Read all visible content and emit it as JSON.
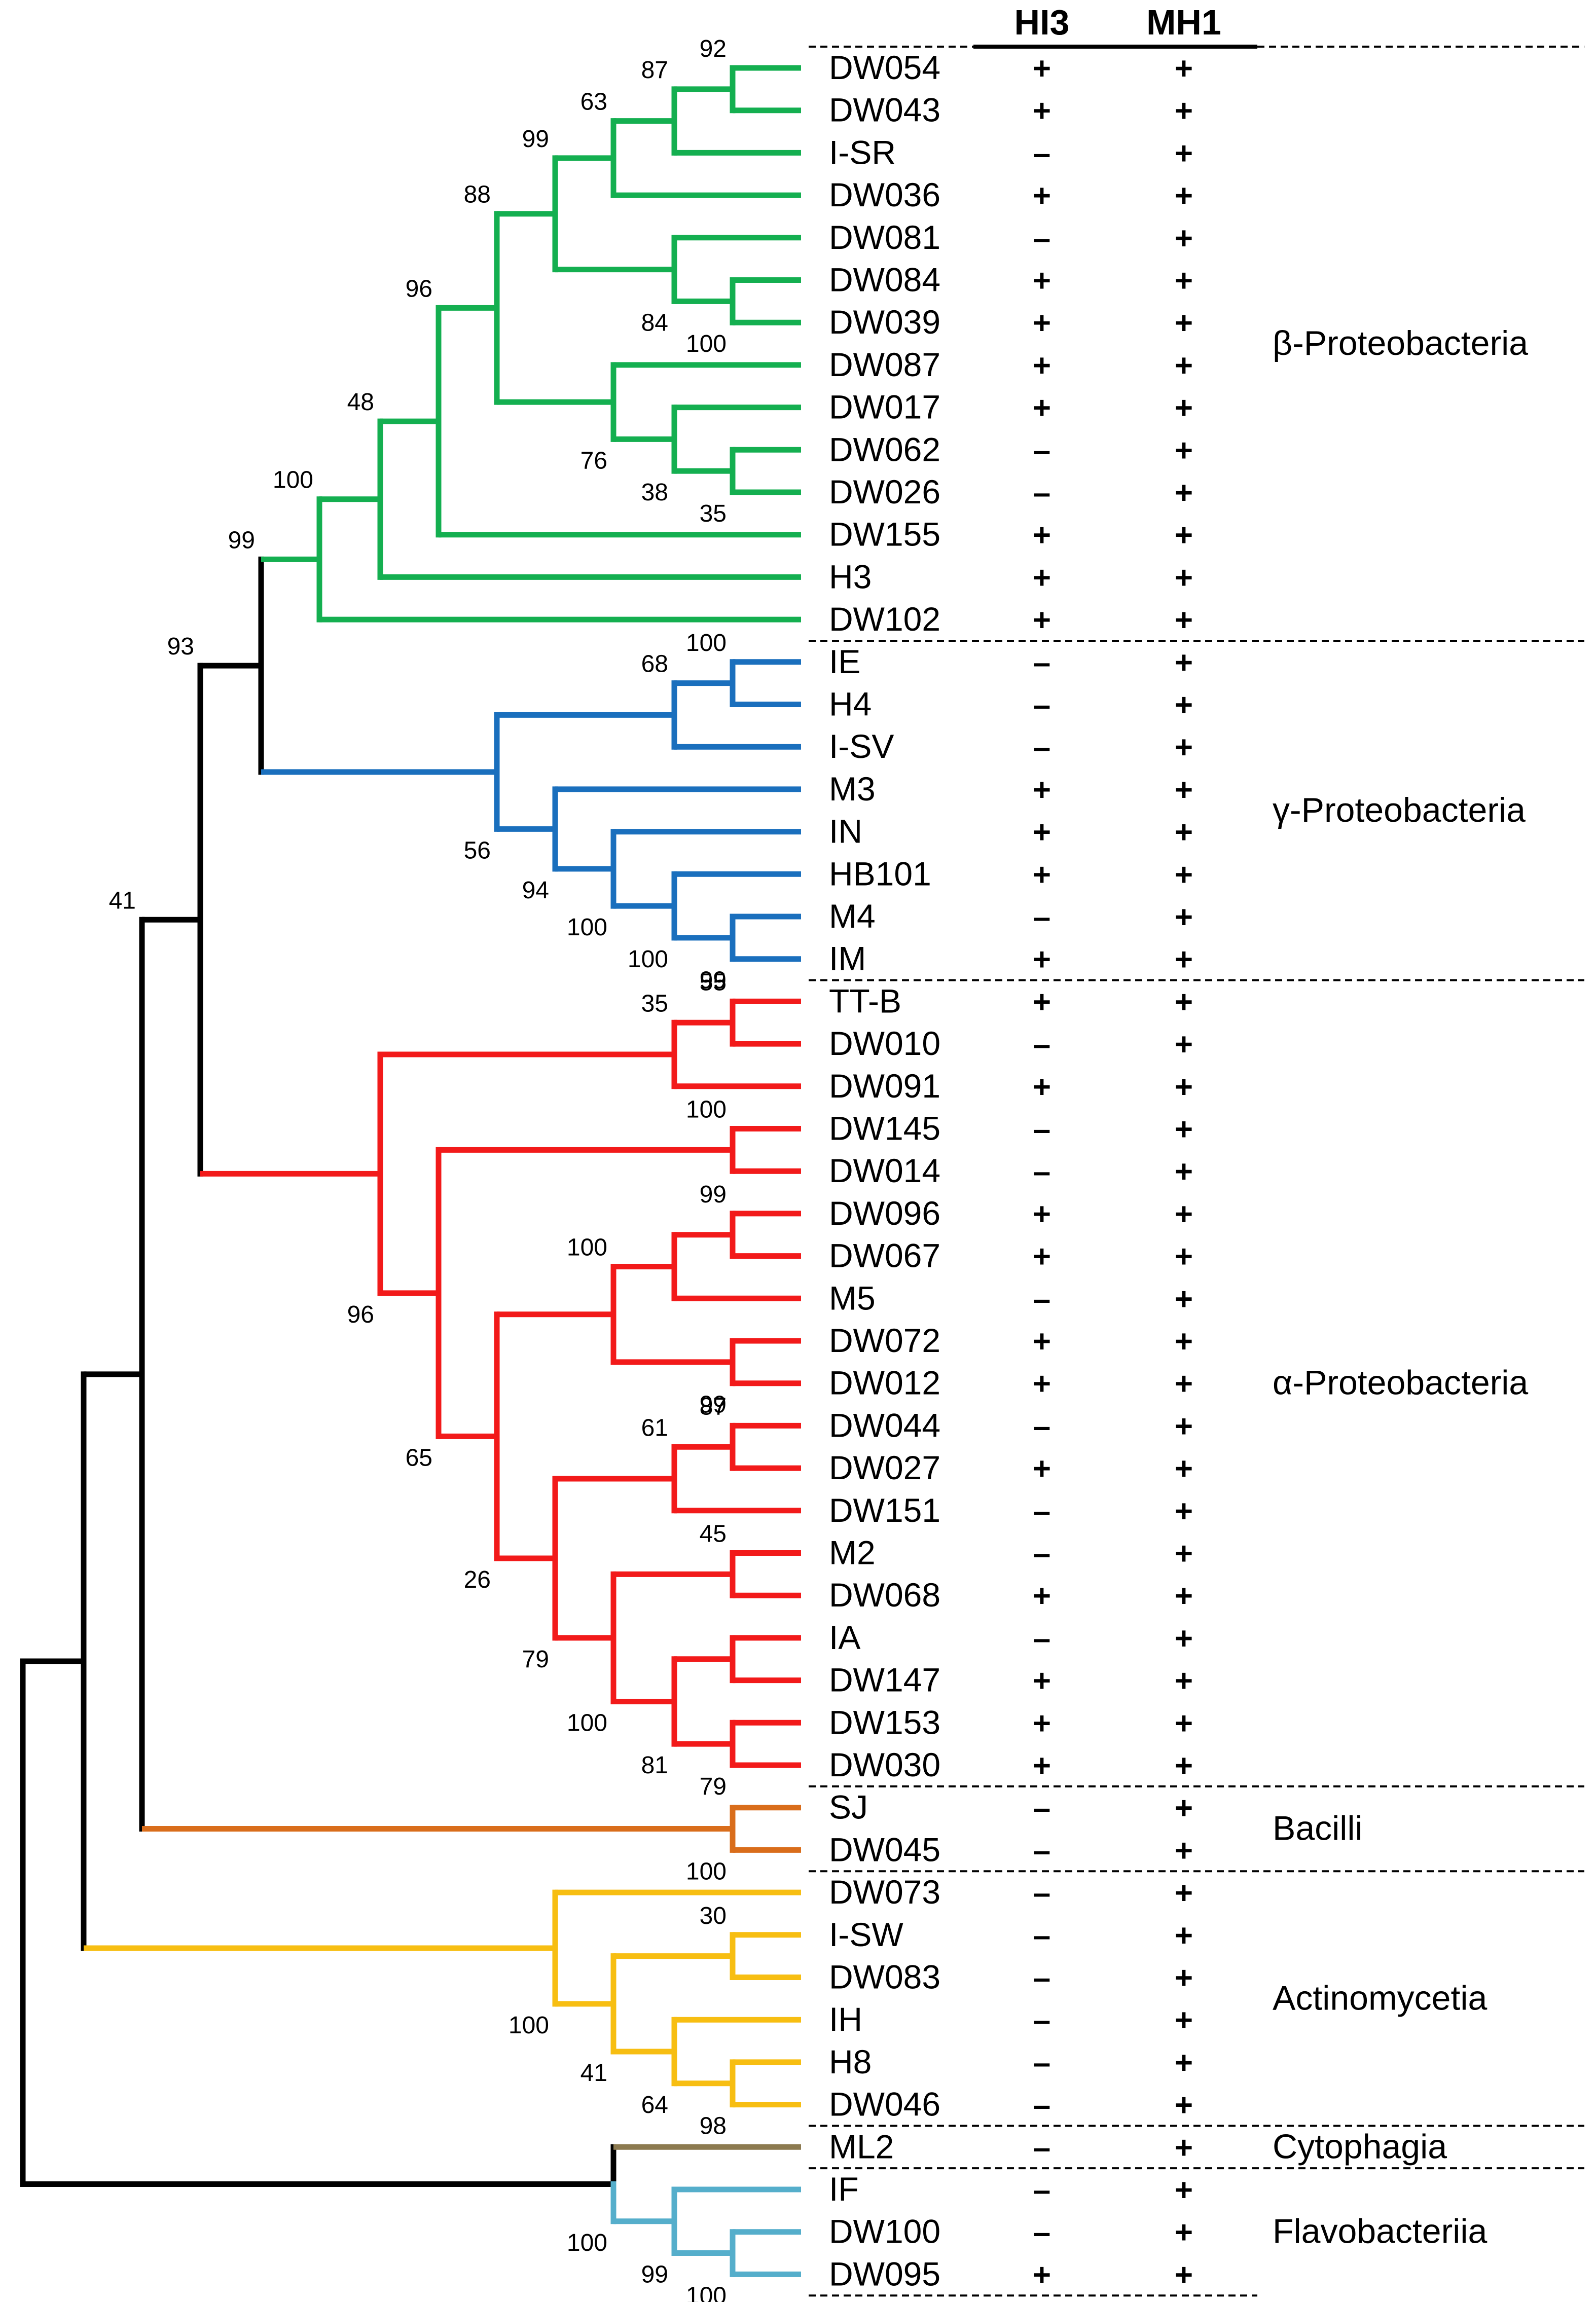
{
  "table": {
    "headers": [
      "HI3",
      "MH1"
    ]
  },
  "colors": {
    "beta": "#14AF50",
    "gamma": "#1A6FBD",
    "alpha": "#F21A1A",
    "bacilli": "#D96D1B",
    "actino": "#F7BE12",
    "cyto": "#8C7A50",
    "flavo": "#55AECB",
    "root": "#000000"
  },
  "leaves": [
    {
      "name": "DW054",
      "hi3": "+",
      "mh1": "+"
    },
    {
      "name": "DW043",
      "hi3": "+",
      "mh1": "+"
    },
    {
      "name": "I-SR",
      "hi3": "–",
      "mh1": "+"
    },
    {
      "name": "DW036",
      "hi3": "+",
      "mh1": "+"
    },
    {
      "name": "DW081",
      "hi3": "–",
      "mh1": "+"
    },
    {
      "name": "DW084",
      "hi3": "+",
      "mh1": "+"
    },
    {
      "name": "DW039",
      "hi3": "+",
      "mh1": "+"
    },
    {
      "name": "DW087",
      "hi3": "+",
      "mh1": "+"
    },
    {
      "name": "DW017",
      "hi3": "+",
      "mh1": "+"
    },
    {
      "name": "DW062",
      "hi3": "–",
      "mh1": "+"
    },
    {
      "name": "DW026",
      "hi3": "–",
      "mh1": "+"
    },
    {
      "name": "DW155",
      "hi3": "+",
      "mh1": "+"
    },
    {
      "name": "H3",
      "hi3": "+",
      "mh1": "+"
    },
    {
      "name": "DW102",
      "hi3": "+",
      "mh1": "+"
    },
    {
      "name": "IE",
      "hi3": "–",
      "mh1": "+"
    },
    {
      "name": "H4",
      "hi3": "–",
      "mh1": "+"
    },
    {
      "name": "I-SV",
      "hi3": "–",
      "mh1": "+"
    },
    {
      "name": "M3",
      "hi3": "+",
      "mh1": "+"
    },
    {
      "name": "IN",
      "hi3": "+",
      "mh1": "+"
    },
    {
      "name": "HB101",
      "hi3": "+",
      "mh1": "+"
    },
    {
      "name": "M4",
      "hi3": "–",
      "mh1": "+"
    },
    {
      "name": "IM",
      "hi3": "+",
      "mh1": "+"
    },
    {
      "name": "TT-B",
      "hi3": "+",
      "mh1": "+"
    },
    {
      "name": "DW010",
      "hi3": "–",
      "mh1": "+"
    },
    {
      "name": "DW091",
      "hi3": "+",
      "mh1": "+"
    },
    {
      "name": "DW145",
      "hi3": "–",
      "mh1": "+"
    },
    {
      "name": "DW014",
      "hi3": "–",
      "mh1": "+"
    },
    {
      "name": "DW096",
      "hi3": "+",
      "mh1": "+"
    },
    {
      "name": "DW067",
      "hi3": "+",
      "mh1": "+"
    },
    {
      "name": "M5",
      "hi3": "–",
      "mh1": "+"
    },
    {
      "name": "DW072",
      "hi3": "+",
      "mh1": "+"
    },
    {
      "name": "DW012",
      "hi3": "+",
      "mh1": "+"
    },
    {
      "name": "DW044",
      "hi3": "–",
      "mh1": "+"
    },
    {
      "name": "DW027",
      "hi3": "+",
      "mh1": "+"
    },
    {
      "name": "DW151",
      "hi3": "–",
      "mh1": "+"
    },
    {
      "name": "M2",
      "hi3": "–",
      "mh1": "+"
    },
    {
      "name": "DW068",
      "hi3": "+",
      "mh1": "+"
    },
    {
      "name": "IA",
      "hi3": "–",
      "mh1": "+"
    },
    {
      "name": "DW147",
      "hi3": "+",
      "mh1": "+"
    },
    {
      "name": "DW153",
      "hi3": "+",
      "mh1": "+"
    },
    {
      "name": "DW030",
      "hi3": "+",
      "mh1": "+"
    },
    {
      "name": "SJ",
      "hi3": "–",
      "mh1": "+"
    },
    {
      "name": "DW045",
      "hi3": "–",
      "mh1": "+"
    },
    {
      "name": "DW073",
      "hi3": "–",
      "mh1": "+"
    },
    {
      "name": "I-SW",
      "hi3": "–",
      "mh1": "+"
    },
    {
      "name": "DW083",
      "hi3": "–",
      "mh1": "+"
    },
    {
      "name": "IH",
      "hi3": "–",
      "mh1": "+"
    },
    {
      "name": "H8",
      "hi3": "–",
      "mh1": "+"
    },
    {
      "name": "DW046",
      "hi3": "–",
      "mh1": "+"
    },
    {
      "name": "ML2",
      "hi3": "–",
      "mh1": "+"
    },
    {
      "name": "IF",
      "hi3": "–",
      "mh1": "+"
    },
    {
      "name": "DW100",
      "hi3": "–",
      "mh1": "+"
    },
    {
      "name": "DW095",
      "hi3": "+",
      "mh1": "+"
    }
  ],
  "clades": [
    {
      "label": "β-Proteobacteria",
      "first": 0,
      "last": 13
    },
    {
      "label": "γ-Proteobacteria",
      "first": 14,
      "last": 21
    },
    {
      "label": "α-Proteobacteria",
      "first": 22,
      "last": 40
    },
    {
      "label": "Bacilli",
      "first": 41,
      "last": 42
    },
    {
      "label": "Actinomycetia",
      "first": 43,
      "last": 48
    },
    {
      "label": "Cytophagia",
      "first": 49,
      "last": 49
    },
    {
      "label": "Flavobacteriia",
      "first": 50,
      "last": 52
    }
  ],
  "bootstrap": [
    "92",
    "87",
    "63",
    "99",
    "84",
    "100",
    "88",
    "96",
    "76",
    "38",
    "35",
    "48",
    "100",
    "99",
    "100",
    "68",
    "56",
    "94",
    "100",
    "100",
    "99",
    "93",
    "55",
    "35",
    "100",
    "96",
    "65",
    "99",
    "100",
    "99",
    "87",
    "61",
    "26",
    "45",
    "79",
    "100",
    "81",
    "79",
    "100",
    "41",
    "30",
    "100",
    "41",
    "64",
    "98",
    "100",
    "99",
    "100"
  ]
}
